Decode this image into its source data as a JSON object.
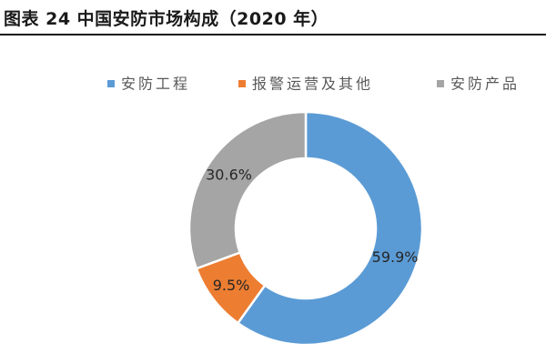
{
  "figure_title": "图表 24 中国安防市场构成（2020 年）",
  "colors": {
    "安防工程": "#5b9bd5",
    "报警运营及其他": "#ed7d31",
    "安防产品": "#a5a5a5",
    "label_text": "#262626",
    "legend_text": "#595959",
    "separator": "#ffffff"
  },
  "chart_data": {
    "type": "pie",
    "variant": "donut",
    "title": "",
    "legend_position": "top-right",
    "start_angle_degrees": 0,
    "direction": "clockwise",
    "categories": [
      "安防工程",
      "报警运营及其他",
      "安防产品"
    ],
    "values": [
      59.9,
      9.5,
      30.6
    ],
    "value_labels": [
      "59.9%",
      "9.5%",
      "30.6%"
    ],
    "unit": "%"
  }
}
